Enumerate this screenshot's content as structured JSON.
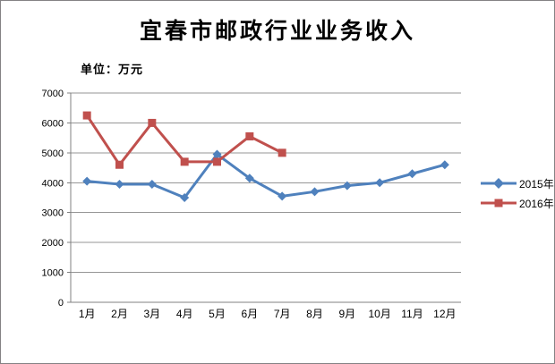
{
  "window": {
    "background": "#ffffff",
    "border_color": "#848284"
  },
  "chart_data": {
    "type": "line",
    "title": "宜春市邮政行业业务收入",
    "unit_label": "单位：万元",
    "categories": [
      "1月",
      "2月",
      "3月",
      "4月",
      "5月",
      "6月",
      "7月",
      "8月",
      "9月",
      "10月",
      "11月",
      "12月"
    ],
    "series": [
      {
        "name": "2015年",
        "color": "#4F81BD",
        "marker": "diamond",
        "values": [
          4050,
          3950,
          3950,
          3500,
          4950,
          4150,
          3550,
          3700,
          3900,
          4000,
          4300,
          4600
        ]
      },
      {
        "name": "2016年",
        "color": "#C0504D",
        "marker": "square",
        "values": [
          6250,
          4600,
          6000,
          4700,
          4700,
          5550,
          5000,
          null,
          null,
          null,
          null,
          null
        ]
      }
    ],
    "ylim": [
      0,
      7000
    ],
    "ystep": 1000,
    "grid": true,
    "legend_position": "right",
    "grid_color": "#969696",
    "axis_color": "#808080",
    "text_color": "#000000"
  }
}
